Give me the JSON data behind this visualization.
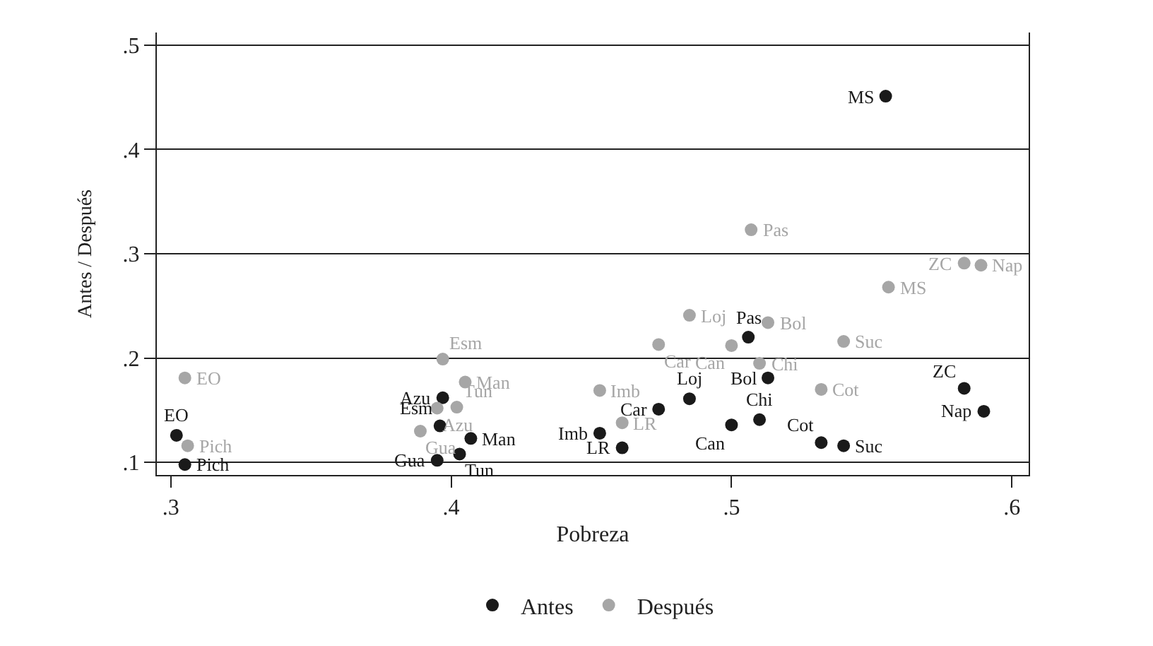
{
  "chart_data": {
    "type": "scatter",
    "xlabel": "Pobreza",
    "ylabel": "Antes / Después",
    "xlim": [
      0.295,
      0.606
    ],
    "ylim": [
      0.088,
      0.512
    ],
    "xticks": [
      {
        "value": 0.3,
        "label": ".3"
      },
      {
        "value": 0.4,
        "label": ".4"
      },
      {
        "value": 0.5,
        "label": ".5"
      },
      {
        "value": 0.6,
        "label": ".6"
      }
    ],
    "yticks": [
      {
        "value": 0.1,
        "label": ".1"
      },
      {
        "value": 0.2,
        "label": ".2"
      },
      {
        "value": 0.3,
        "label": ".3"
      },
      {
        "value": 0.4,
        "label": ".4"
      },
      {
        "value": 0.5,
        "label": ".5"
      }
    ],
    "grid": "y",
    "legend": "bottom",
    "marker": "circle",
    "series": [
      {
        "name": "Antes",
        "color": "#1a1a1a",
        "x": [
          0.302,
          0.305,
          0.397,
          0.396,
          0.407,
          0.395,
          0.403,
          0.506,
          0.513,
          0.583,
          0.485,
          0.474,
          0.59,
          0.51,
          0.5,
          0.453,
          0.532,
          0.54,
          0.461,
          0.555
        ],
        "values": [
          0.126,
          0.098,
          0.162,
          0.135,
          0.123,
          0.102,
          0.108,
          0.22,
          0.181,
          0.171,
          0.161,
          0.151,
          0.149,
          0.141,
          0.136,
          0.128,
          0.119,
          0.116,
          0.114,
          0.451
        ]
      },
      {
        "name": "Después",
        "color": "#a6a6a6",
        "x": [
          0.305,
          0.306,
          0.397,
          0.405,
          0.402,
          0.395,
          0.389,
          0.507,
          0.583,
          0.589,
          0.556,
          0.485,
          0.513,
          0.54,
          0.474,
          0.5,
          0.51,
          0.453,
          0.532,
          0.461
        ],
        "values": [
          0.181,
          0.116,
          0.199,
          0.177,
          0.153,
          0.152,
          0.13,
          0.323,
          0.291,
          0.289,
          0.268,
          0.241,
          0.234,
          0.216,
          0.213,
          0.212,
          0.195,
          0.169,
          0.17,
          0.138
        ]
      }
    ],
    "annotations": [
      {
        "text": "EO",
        "x": 0.302,
        "y": 0.126
      },
      {
        "text": "Pich",
        "x": 0.305,
        "y": 0.098
      },
      {
        "text": "Azu",
        "x": 0.397,
        "y": 0.162
      },
      {
        "text": "Esm",
        "x": 0.396,
        "y": 0.135
      },
      {
        "text": "Man",
        "x": 0.407,
        "y": 0.123
      },
      {
        "text": "Gua",
        "x": 0.395,
        "y": 0.102
      },
      {
        "text": "Tun",
        "x": 0.403,
        "y": 0.108
      },
      {
        "text": "Pas",
        "x": 0.506,
        "y": 0.22
      },
      {
        "text": "Bol",
        "x": 0.513,
        "y": 0.181
      },
      {
        "text": "ZC",
        "x": 0.583,
        "y": 0.171
      },
      {
        "text": "Loj",
        "x": 0.485,
        "y": 0.161
      },
      {
        "text": "Car",
        "x": 0.474,
        "y": 0.151
      },
      {
        "text": "Nap",
        "x": 0.59,
        "y": 0.149
      },
      {
        "text": "Chi",
        "x": 0.51,
        "y": 0.141
      },
      {
        "text": "Can",
        "x": 0.5,
        "y": 0.136
      },
      {
        "text": "Imb",
        "x": 0.453,
        "y": 0.128
      },
      {
        "text": "Cot",
        "x": 0.532,
        "y": 0.119
      },
      {
        "text": "Suc",
        "x": 0.54,
        "y": 0.116
      },
      {
        "text": "LR",
        "x": 0.461,
        "y": 0.114
      },
      {
        "text": "MS",
        "x": 0.555,
        "y": 0.451
      },
      {
        "text": "EO",
        "x": 0.305,
        "y": 0.181
      },
      {
        "text": "Pich",
        "x": 0.306,
        "y": 0.116
      },
      {
        "text": "Esm",
        "x": 0.397,
        "y": 0.199
      },
      {
        "text": "Man",
        "x": 0.405,
        "y": 0.177
      },
      {
        "text": "Tun",
        "x": 0.402,
        "y": 0.153
      },
      {
        "text": "Azu",
        "x": 0.395,
        "y": 0.152
      },
      {
        "text": "Gua",
        "x": 0.389,
        "y": 0.13
      },
      {
        "text": "Pas",
        "x": 0.507,
        "y": 0.323
      },
      {
        "text": "ZC",
        "x": 0.583,
        "y": 0.291
      },
      {
        "text": "Nap",
        "x": 0.589,
        "y": 0.289
      },
      {
        "text": "MS",
        "x": 0.556,
        "y": 0.268
      },
      {
        "text": "Loj",
        "x": 0.485,
        "y": 0.241
      },
      {
        "text": "Bol",
        "x": 0.513,
        "y": 0.234
      },
      {
        "text": "Suc",
        "x": 0.54,
        "y": 0.216
      },
      {
        "text": "Car",
        "x": 0.474,
        "y": 0.213
      },
      {
        "text": "Can",
        "x": 0.5,
        "y": 0.212
      },
      {
        "text": "Chi",
        "x": 0.51,
        "y": 0.195
      },
      {
        "text": "Imb",
        "x": 0.453,
        "y": 0.169
      },
      {
        "text": "Cot",
        "x": 0.532,
        "y": 0.17
      },
      {
        "text": "LR",
        "x": 0.461,
        "y": 0.138
      }
    ]
  }
}
